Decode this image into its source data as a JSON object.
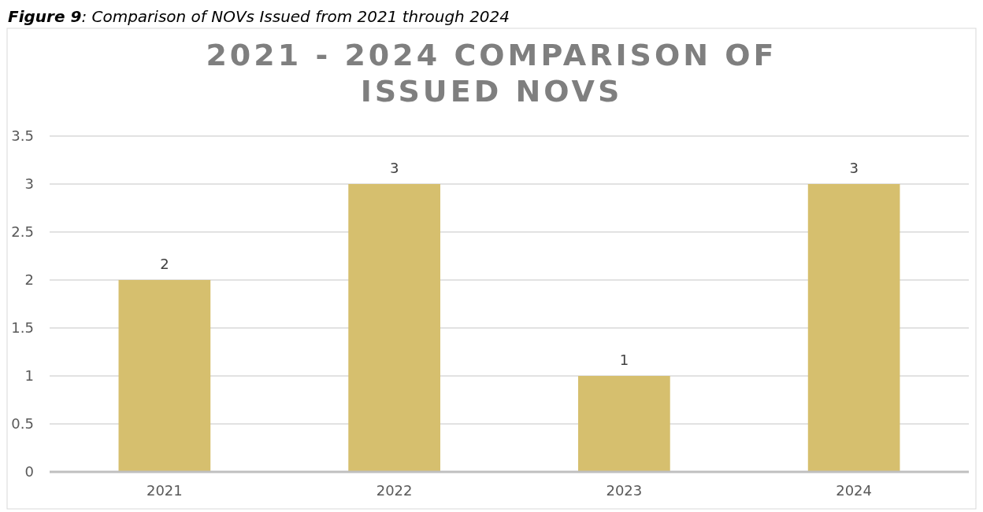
{
  "chart_data": {
    "type": "bar",
    "title": "2021 - 2024 COMPARISON OF ISSUED NOVS",
    "annotations": [
      "Figure 9: Comparison of NOVs Issued from 2021 through 2024"
    ],
    "categories": [
      "2021",
      "2022",
      "2023",
      "2024"
    ],
    "values": [
      2,
      3,
      1,
      3
    ],
    "color": "#d6bf6e",
    "ylim": [
      0,
      3.5
    ],
    "yticks": [
      0,
      0.5,
      1,
      1.5,
      2,
      2.5,
      3,
      3.5
    ],
    "grid": "y",
    "data_labels": true
  }
}
